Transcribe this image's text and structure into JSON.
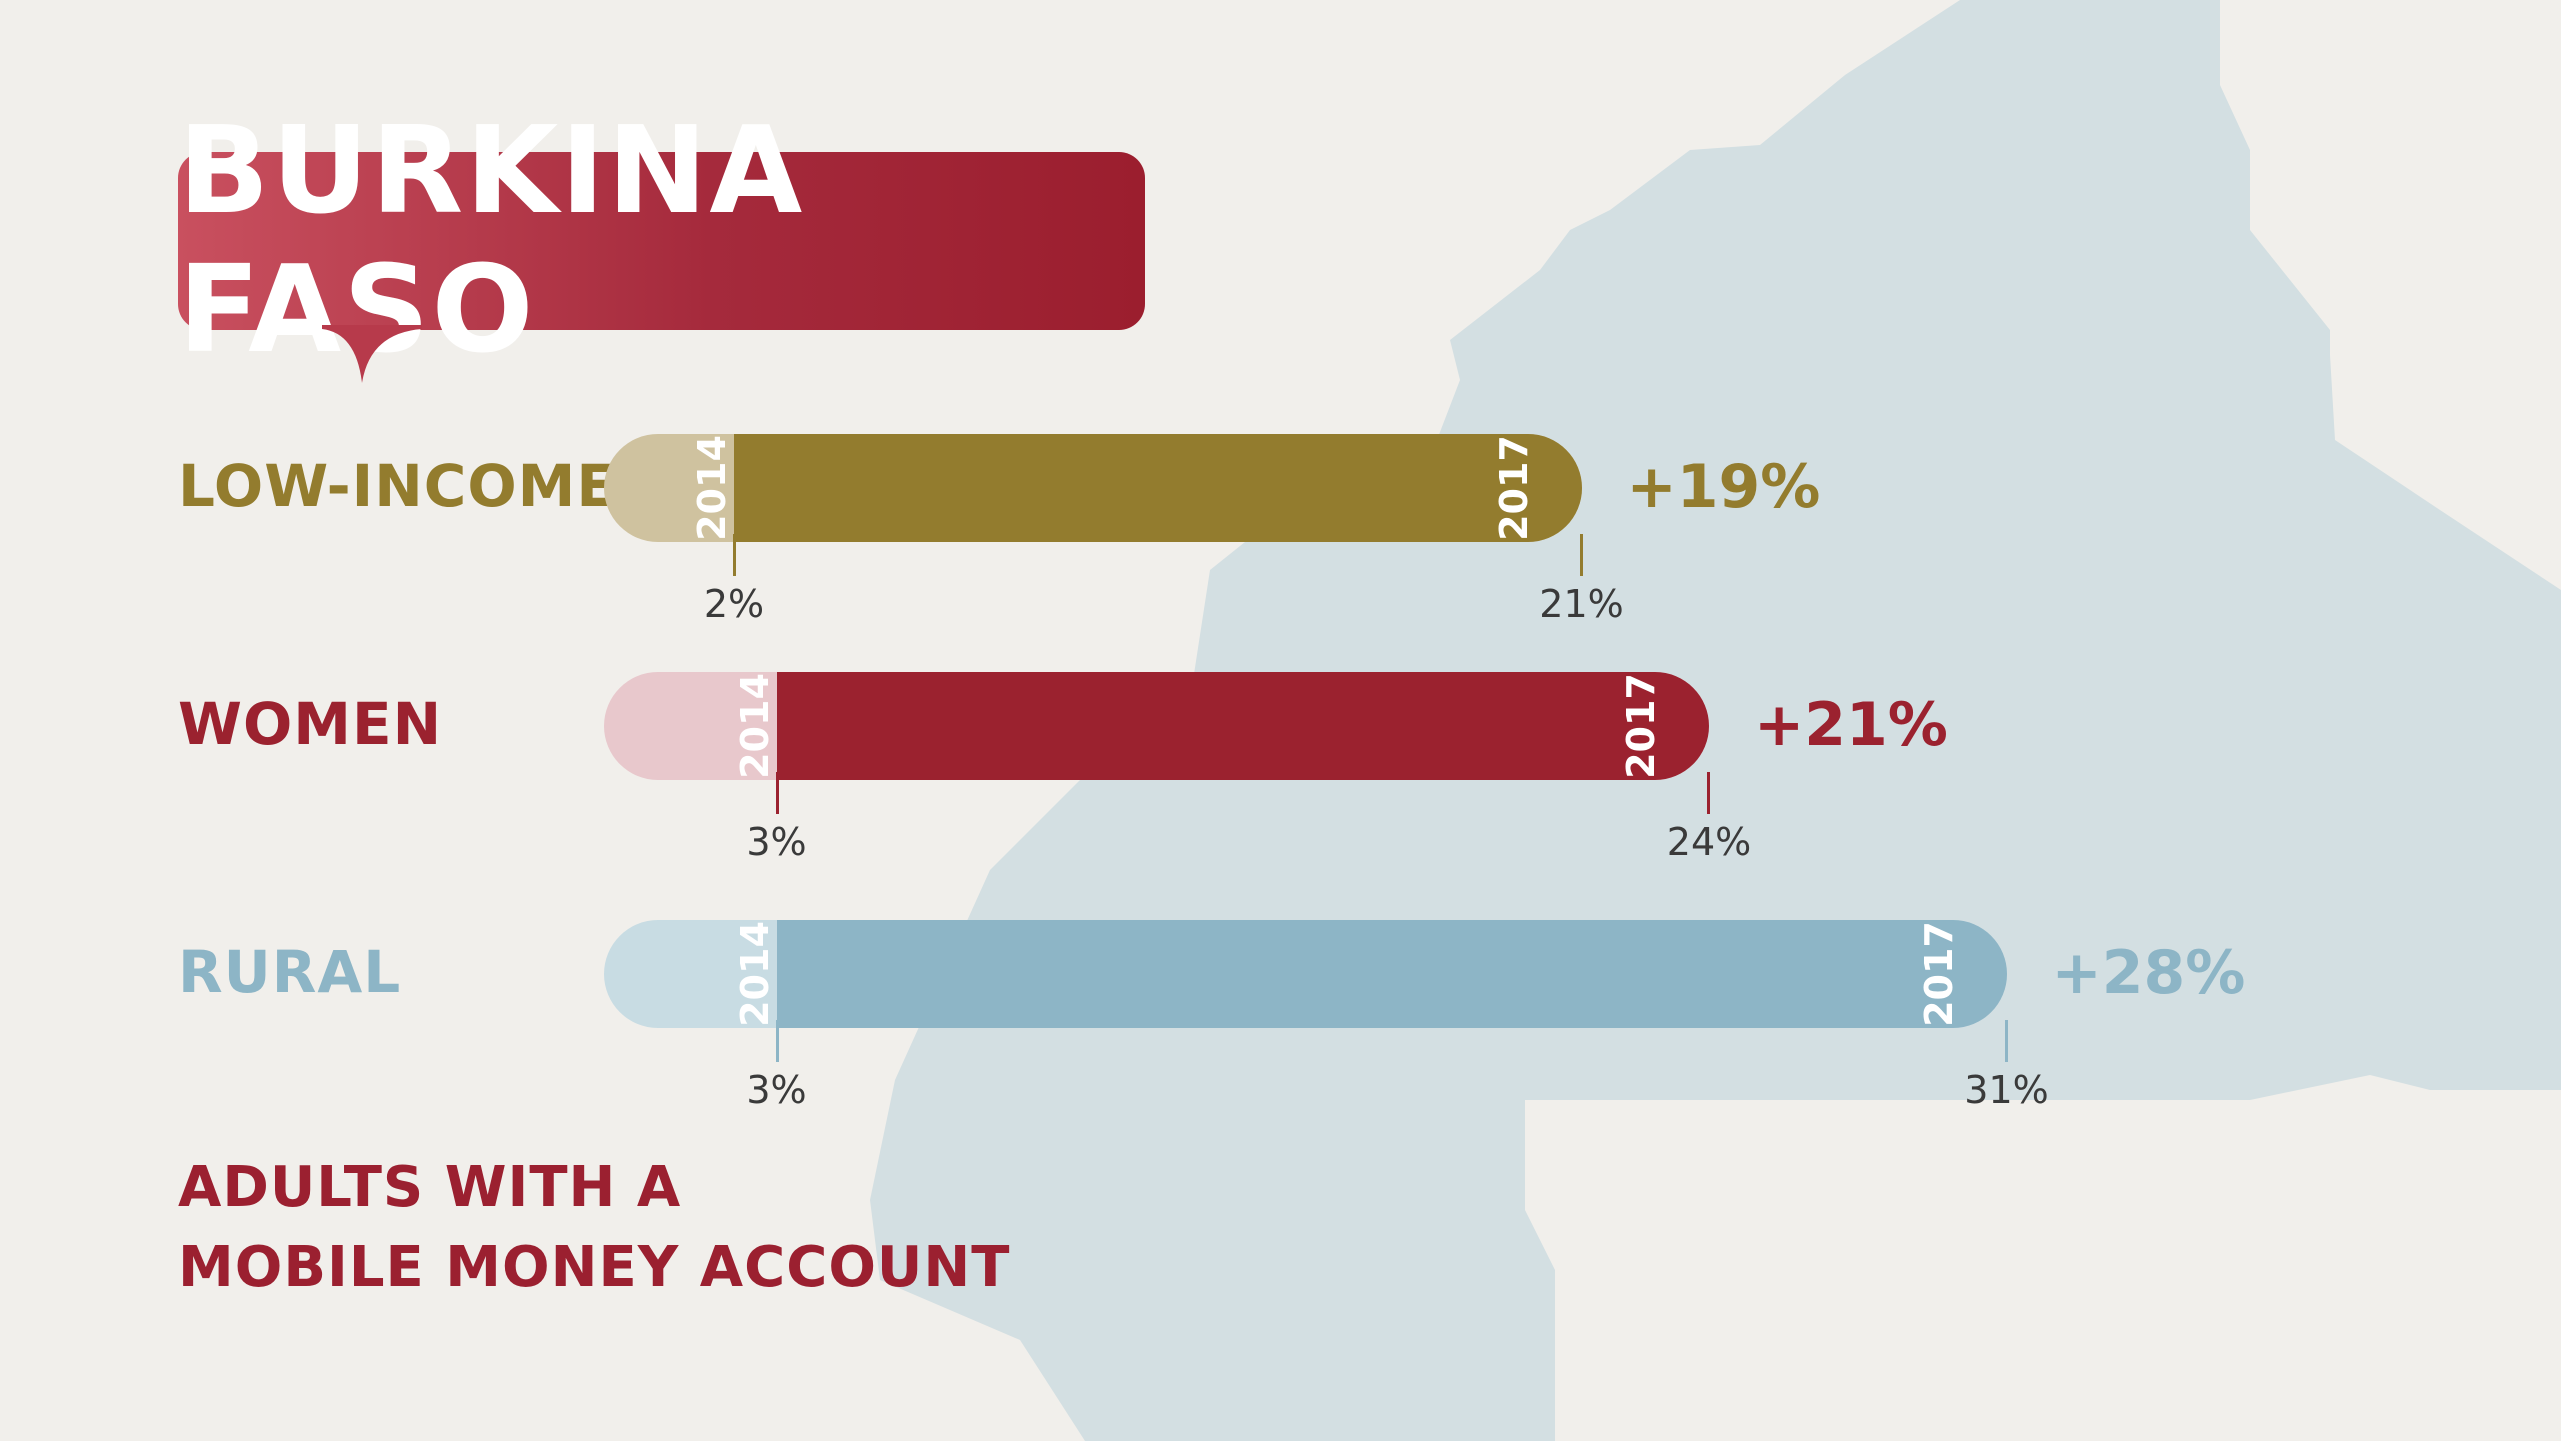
{
  "title": "BURKINA FASO",
  "subtitle_line1": "ADULTS WITH A",
  "subtitle_line2": "MOBILE MONEY ACCOUNT",
  "chart_data": {
    "type": "bar",
    "title": "BURKINA FASO",
    "subtitle": "ADULTS WITH A MOBILE MONEY ACCOUNT",
    "xlim": [
      0,
      35
    ],
    "series": [
      {
        "category": "LOW-INCOME",
        "start_label": "2014",
        "end_label": "2017",
        "start_value": 2,
        "end_value": 21,
        "start_text": "2%",
        "end_text": "21%",
        "change_text": "+19%",
        "color": "#937c2e",
        "light_color": "#cfc29f"
      },
      {
        "category": "WOMEN",
        "start_label": "2014",
        "end_label": "2017",
        "start_value": 3,
        "end_value": 24,
        "start_text": "3%",
        "end_text": "24%",
        "change_text": "+21%",
        "color": "#9b222f",
        "light_color": "#e8c8cc"
      },
      {
        "category": "RURAL",
        "start_label": "2014",
        "end_label": "2017",
        "start_value": 3,
        "end_value": 31,
        "start_text": "3%",
        "end_text": "31%",
        "change_text": "+28%",
        "color": "#8db5c6",
        "light_color": "#c8dce3"
      }
    ]
  }
}
